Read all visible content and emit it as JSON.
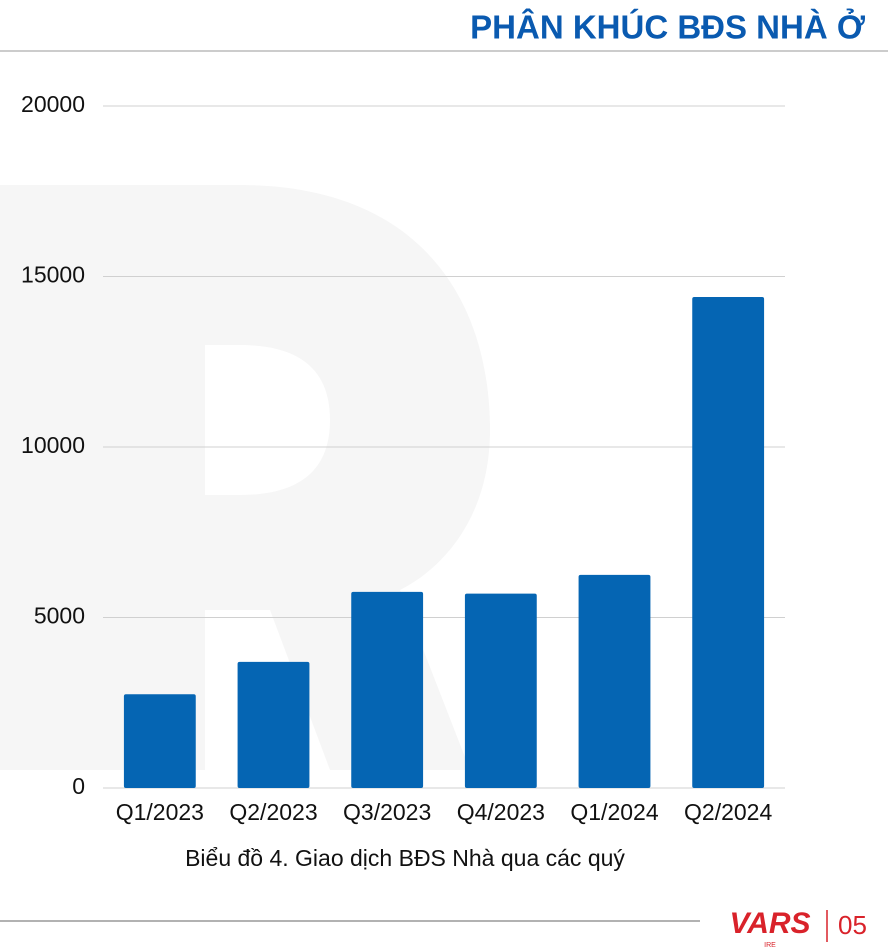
{
  "header": {
    "title": "PHÂN KHÚC BĐS NHÀ Ở"
  },
  "chart_data": {
    "type": "bar",
    "categories": [
      "Q1/2023",
      "Q2/2023",
      "Q3/2023",
      "Q4/2023",
      "Q1/2024",
      "Q2/2024"
    ],
    "values": [
      2750,
      3700,
      5750,
      5700,
      6250,
      14400
    ],
    "color": "#0565b3",
    "ylim": [
      0,
      20000
    ],
    "yticks": [
      0,
      5000,
      10000,
      15000,
      20000
    ],
    "grid": true,
    "caption": "Biểu đồ 4. Giao dịch BĐS Nhà qua các quý"
  },
  "footer": {
    "logo": "VARS",
    "logo_sub": "IRE",
    "page": "05"
  }
}
